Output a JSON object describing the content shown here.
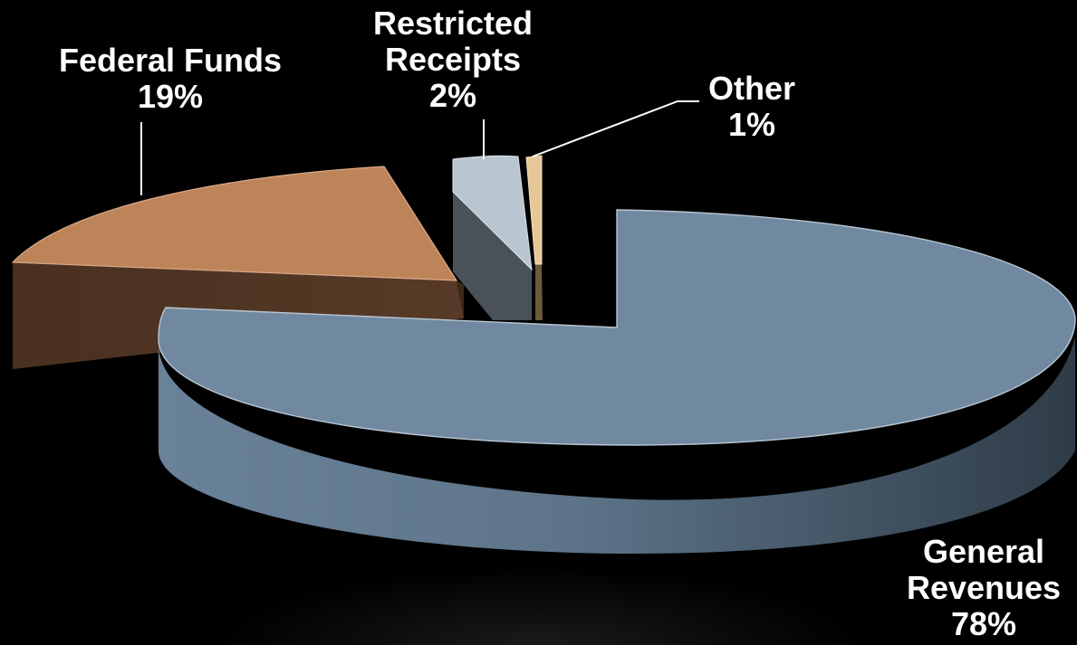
{
  "chart_data": {
    "type": "pie",
    "title": "",
    "slices": [
      {
        "name": "General Revenues",
        "name_lines": [
          "General",
          "Revenues"
        ],
        "value": 78,
        "pct_label": "78%",
        "color": "#7189a0",
        "side_color": "#4f6275"
      },
      {
        "name": "Federal Funds",
        "name_lines": [
          "Federal Funds"
        ],
        "value": 19,
        "pct_label": "19%",
        "color": "#bd8459",
        "side_color": "#4e3323"
      },
      {
        "name": "Restricted Receipts",
        "name_lines": [
          "Restricted",
          "Receipts"
        ],
        "value": 2,
        "pct_label": "2%",
        "color": "#b9c6d2",
        "side_color": "#4c5258"
      },
      {
        "name": "Other",
        "name_lines": [
          "Other"
        ],
        "value": 1,
        "pct_label": "1%",
        "color": "#e6c898",
        "side_color": "#6b5a3c"
      }
    ],
    "label_color": "#ffffff",
    "background": "#000000"
  }
}
